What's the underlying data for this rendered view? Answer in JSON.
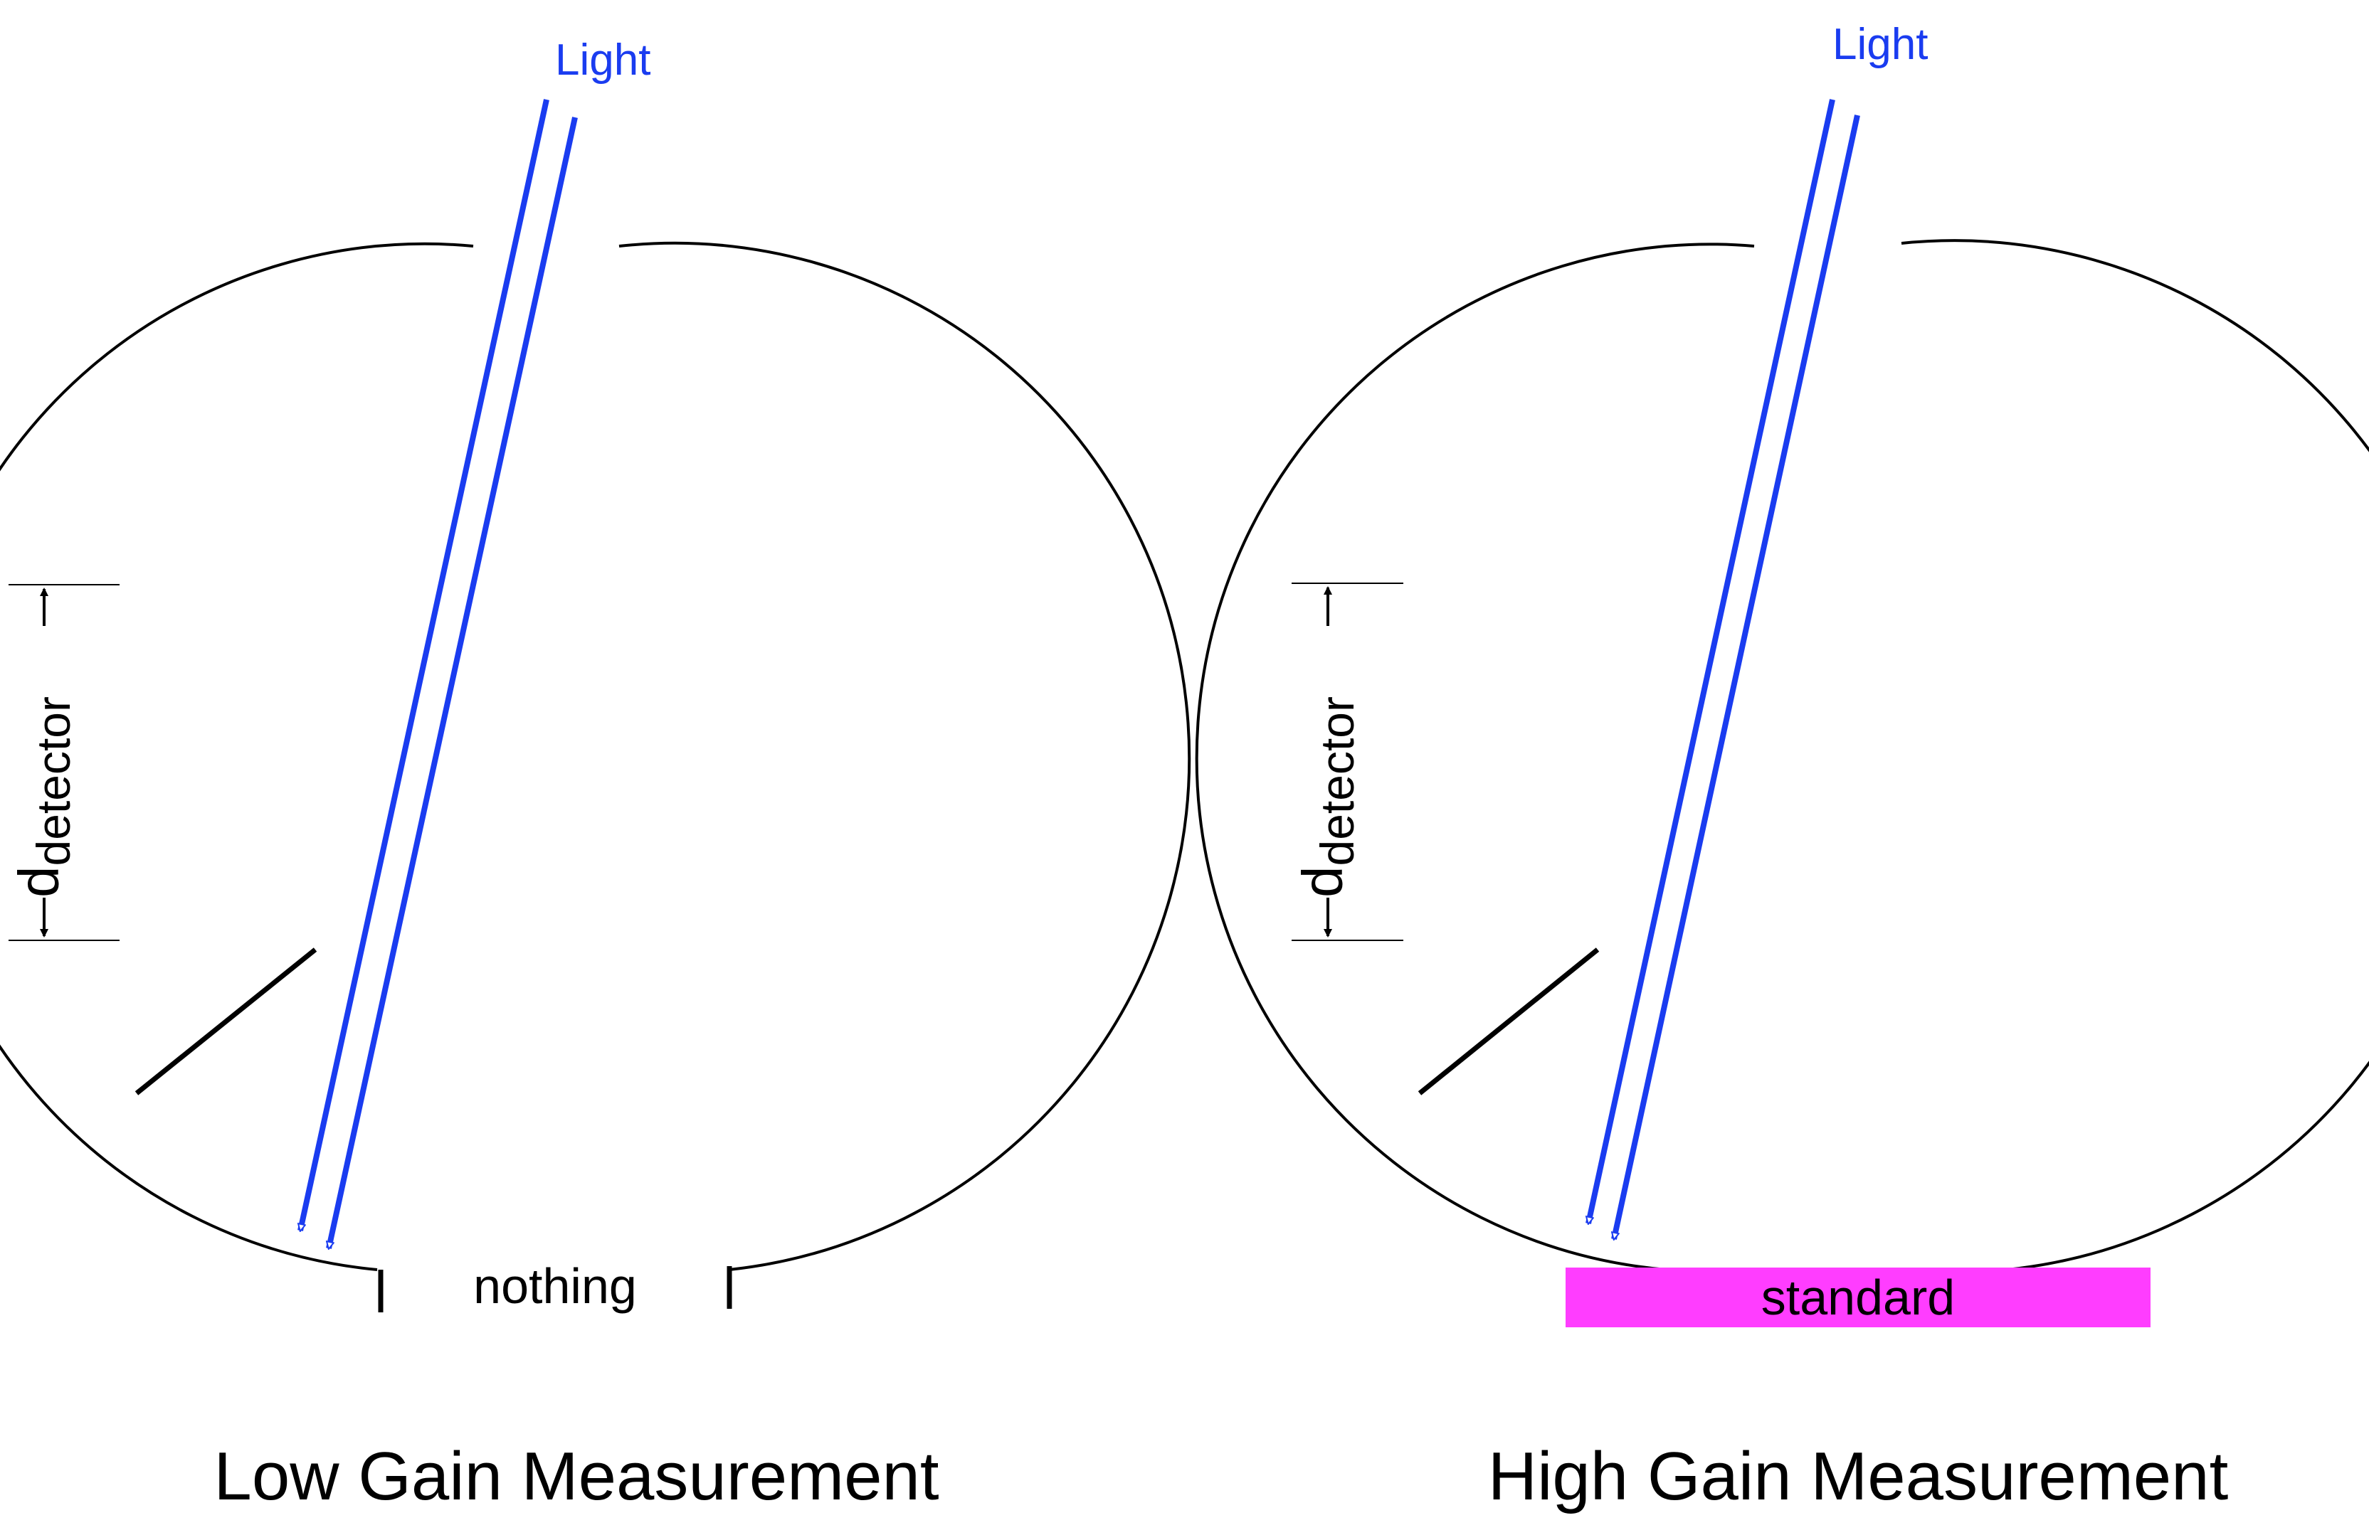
{
  "colors": {
    "beam": "#1a3cf0",
    "standard_fill": "#ff3dff",
    "outline": "#000000"
  },
  "left": {
    "light_label": "Light",
    "port_label": "nothing",
    "caption": "Low Gain Measurement",
    "detector_symbol": "d",
    "detector_subscript": "detector"
  },
  "right": {
    "light_label": "Light",
    "sample_label": "standard",
    "caption": "High Gain Measurement",
    "detector_symbol": "d",
    "detector_subscript": "detector"
  }
}
